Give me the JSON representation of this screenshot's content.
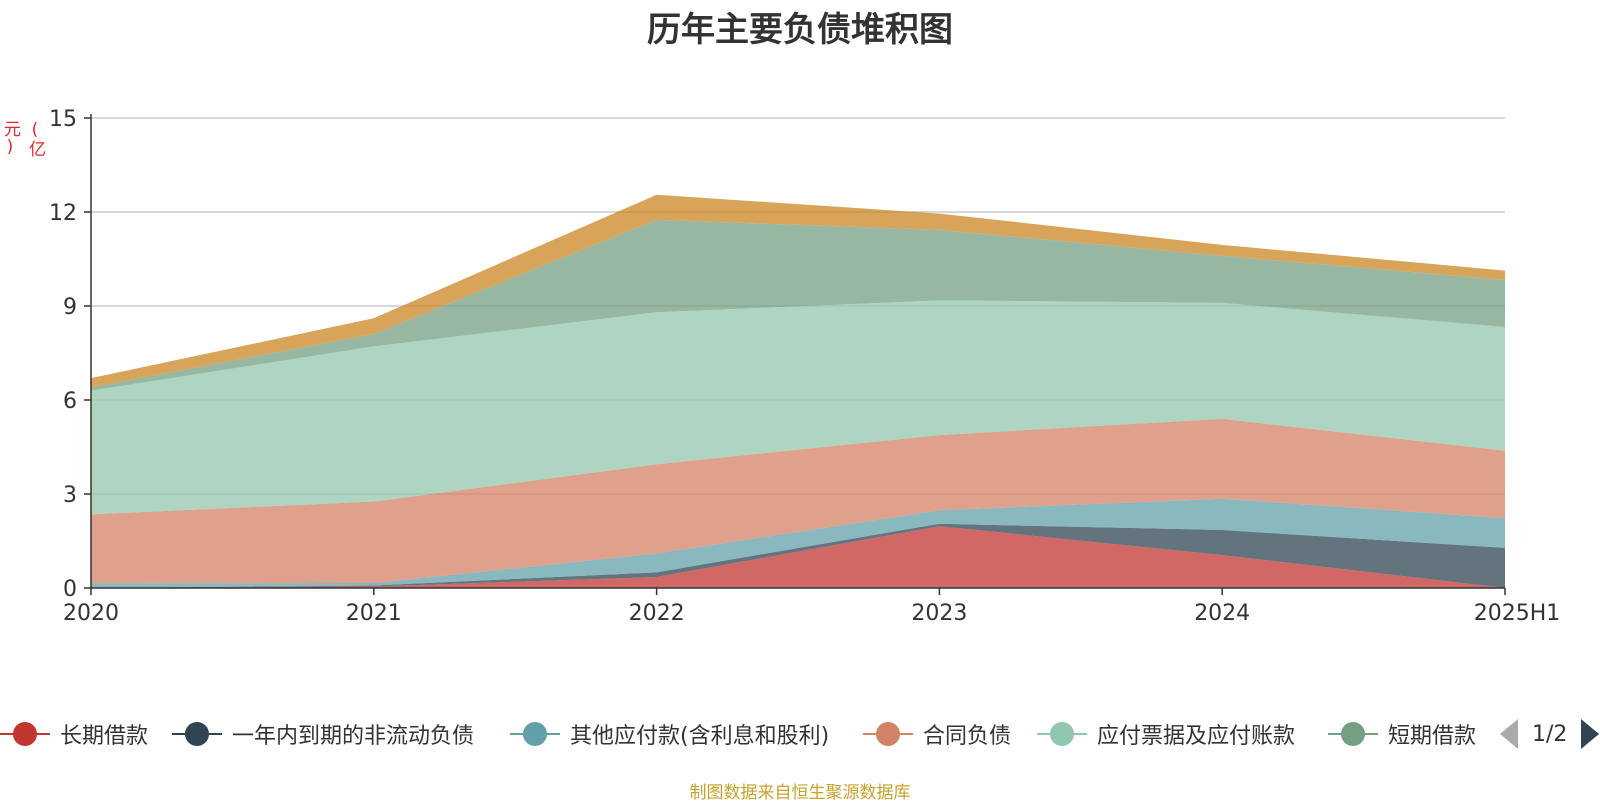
{
  "chart_data": {
    "type": "area",
    "stacked": true,
    "title": "历年主要负债堆积图",
    "unit_label": "(亿元)",
    "categories": [
      "2020",
      "2021",
      "2022",
      "2023",
      "2024",
      "2025H1"
    ],
    "yticks": [
      "0",
      "3",
      "6",
      "9",
      "12",
      "15"
    ],
    "ylim": [
      0,
      15
    ],
    "grid": true,
    "series": [
      {
        "name": "长期借款",
        "color": "#c23531",
        "values": [
          0.0,
          0.05,
          0.35,
          1.97,
          1.05,
          0.0
        ]
      },
      {
        "name": "一年内到期的非流动负债",
        "color": "#2f4554",
        "values": [
          0.0,
          0.03,
          0.15,
          0.08,
          0.8,
          1.28
        ]
      },
      {
        "name": "其他应付款(含利息和股利)",
        "color": "#61a0a8",
        "values": [
          0.15,
          0.08,
          0.6,
          0.43,
          1.0,
          0.95
        ]
      },
      {
        "name": "合同负债",
        "color": "#d48265",
        "values": [
          2.2,
          2.6,
          2.85,
          2.4,
          2.55,
          2.15
        ]
      },
      {
        "name": "应付票据及应付账款",
        "color": "#91c7ae",
        "values": [
          3.95,
          4.95,
          4.85,
          4.3,
          3.7,
          3.95
        ]
      },
      {
        "name": "短期借款",
        "color": "#749f83",
        "values": [
          0.1,
          0.4,
          2.95,
          2.25,
          1.5,
          1.5
        ]
      },
      {
        "name": "",
        "color": "#ca8622",
        "values": [
          0.3,
          0.5,
          0.8,
          0.52,
          0.35,
          0.3
        ]
      }
    ],
    "legend": {
      "position": "bottom",
      "items": [
        "长期借款",
        "一年内到期的非流动负债",
        "其他应付款(含利息和股利)",
        "合同负债",
        "应付票据及应付账款",
        "短期借款"
      ],
      "page": "1/2"
    },
    "source": "制图数据来自恒生聚源数据库"
  }
}
